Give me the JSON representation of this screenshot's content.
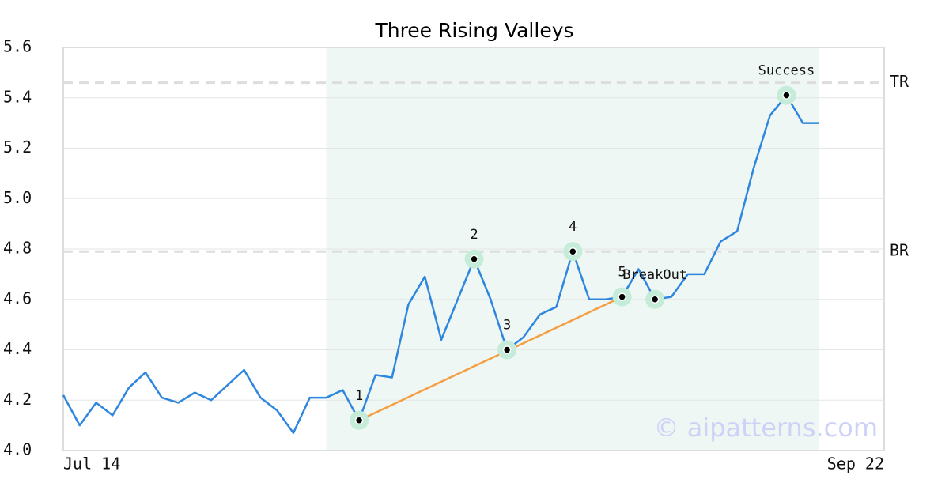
{
  "chart_data": {
    "type": "line",
    "title": "Three Rising Valleys",
    "categories": [
      "Jul 14",
      null,
      null,
      null,
      null,
      null,
      null,
      null,
      null,
      null,
      null,
      null,
      null,
      null,
      null,
      null,
      null,
      null,
      null,
      null,
      null,
      null,
      null,
      null,
      null,
      null,
      null,
      null,
      null,
      null,
      null,
      null,
      null,
      null,
      null,
      null,
      null,
      null,
      null,
      null,
      null,
      null,
      null,
      null,
      null,
      null,
      "Sep 22"
    ],
    "series": [
      {
        "color": "#2e86de",
        "values": [
          4.22,
          4.1,
          4.19,
          4.14,
          4.25,
          4.31,
          4.21,
          4.19,
          4.23,
          4.2,
          4.26,
          4.32,
          4.21,
          4.16,
          4.07,
          4.21,
          4.21,
          4.24,
          4.12,
          4.3,
          4.29,
          4.58,
          4.69,
          4.44,
          4.6,
          4.76,
          4.6,
          4.4,
          4.45,
          4.54,
          4.57,
          4.79,
          4.6,
          4.6,
          4.61,
          4.72,
          4.6,
          4.61,
          4.7,
          4.7,
          4.83,
          4.87,
          5.12,
          5.33,
          5.41,
          5.3,
          5.3
        ]
      }
    ],
    "ylim": [
      4.0,
      5.6
    ],
    "yticks": [
      {
        "value": 4,
        "label": "4.0"
      },
      4.2,
      4.4,
      4.6,
      4.8,
      {
        "value": 5,
        "label": "5.0"
      },
      5.2,
      5.4,
      5.6
    ],
    "grid": true,
    "levels": [
      {
        "label": "TR",
        "value": 5.46
      },
      {
        "label": "BR",
        "value": 4.79
      }
    ],
    "highlight_range": [
      16,
      46
    ],
    "highlight_color": "#eef7f3",
    "trendline": {
      "from": 18,
      "to": 34,
      "color": "#f59e42"
    },
    "annotations": [
      {
        "label": "1",
        "index": 18
      },
      {
        "label": "2",
        "index": 25
      },
      {
        "label": "3",
        "index": 27
      },
      {
        "label": "4",
        "index": 31
      },
      {
        "label": "5",
        "index": 34
      },
      {
        "label": "BreakOut",
        "index": 36
      },
      {
        "label": "Success",
        "index": 44
      }
    ],
    "watermark": "© aipatterns.com"
  }
}
